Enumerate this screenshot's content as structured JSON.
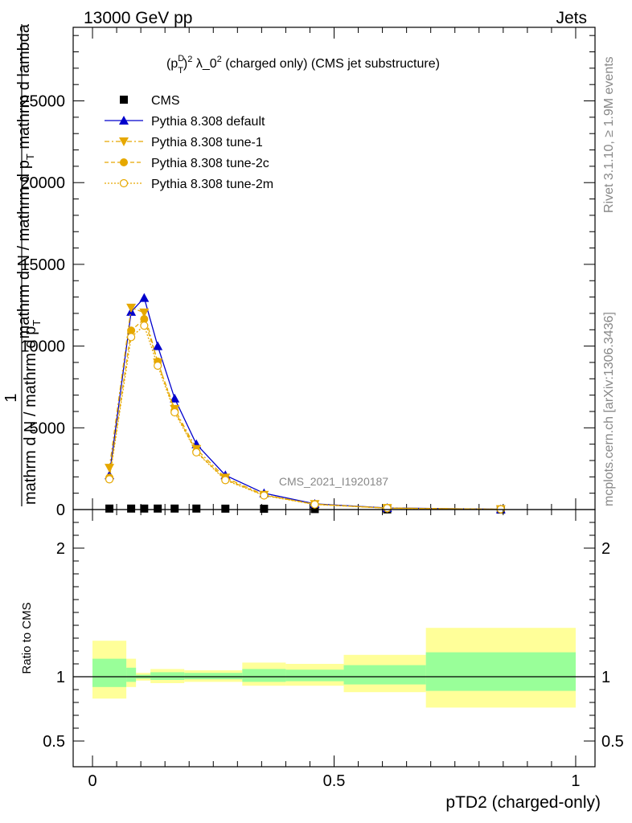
{
  "header": {
    "left": "13000 GeV pp",
    "right": "Jets"
  },
  "side_labels": {
    "rivet": "Rivet 3.1.10, ≥ 1.9M events",
    "mcplots": "mcplots.cern.ch [arXiv:1306.3436]"
  },
  "chart_data": [
    {
      "type": "line",
      "title": "(p_T^D)^2 λ_0^2 (charged only) (CMS jet substructure)",
      "title_parts": {
        "p": "(p",
        "sup_d": "D",
        "sub_t": "T",
        "close": ")",
        "sup_2": "2",
        "lambda": " λ_0",
        "sup_2b": "2",
        "rest": " (charged only) (CMS jet substructure)"
      },
      "watermark": "CMS_2021_I1920187",
      "ylabel_parts": {
        "one": "1",
        "numer_1": "mathrm d",
        "numer_2": "N",
        "numer_3": "mathrm d p",
        "numer_4": "T",
        "numer_5": "mathrm d lambda",
        "denom_1": "mathrm d N / mathrm d p",
        "denom_2": "T"
      },
      "xlim": [
        -0.04,
        1.04
      ],
      "ylim": [
        0,
        29500
      ],
      "yticks": [
        0,
        5000,
        10000,
        15000,
        20000,
        25000
      ],
      "ytick_labels": [
        "0",
        "5000",
        "10000",
        "15000",
        "20000",
        "25000"
      ],
      "legend_position": "top-left",
      "series": [
        {
          "name": "CMS",
          "color": "#000000",
          "marker": "square",
          "x": [
            0.035,
            0.08,
            0.107,
            0.135,
            0.17,
            0.215,
            0.275,
            0.355,
            0.46,
            0.61,
            0.845
          ],
          "y": [
            60,
            60,
            60,
            60,
            60,
            60,
            55,
            50,
            30,
            10,
            2
          ]
        },
        {
          "name": "Pythia 8.308 default",
          "color": "#0000cc",
          "marker": "triangle-up",
          "x": [
            0.035,
            0.08,
            0.107,
            0.135,
            0.17,
            0.215,
            0.275,
            0.355,
            0.46,
            0.61,
            0.845
          ],
          "y": [
            2100,
            12100,
            12950,
            10000,
            6800,
            4000,
            2100,
            1000,
            350,
            100,
            20
          ]
        },
        {
          "name": "Pythia 8.308 tune-1",
          "color": "#e6a800",
          "marker": "triangle-down",
          "x": [
            0.035,
            0.08,
            0.107,
            0.135,
            0.17,
            0.215,
            0.275,
            0.355,
            0.46,
            0.61,
            0.845
          ],
          "y": [
            2550,
            12350,
            12050,
            9000,
            6150,
            3700,
            1950,
            900,
            330,
            90,
            18
          ]
        },
        {
          "name": "Pythia 8.308 tune-2c",
          "color": "#e6a800",
          "marker": "circle",
          "x": [
            0.035,
            0.08,
            0.107,
            0.135,
            0.17,
            0.215,
            0.275,
            0.355,
            0.46,
            0.61,
            0.845
          ],
          "y": [
            1950,
            10950,
            11650,
            9050,
            6050,
            3550,
            1850,
            880,
            320,
            85,
            18
          ]
        },
        {
          "name": "Pythia 8.308 tune-2m",
          "color": "#e6a800",
          "marker": "circle-open",
          "x": [
            0.035,
            0.08,
            0.107,
            0.135,
            0.17,
            0.215,
            0.275,
            0.355,
            0.46,
            0.61,
            0.845
          ],
          "y": [
            1850,
            10550,
            11250,
            8800,
            5950,
            3500,
            1800,
            860,
            310,
            85,
            17
          ]
        }
      ]
    },
    {
      "type": "area",
      "ylabel": "Ratio to CMS",
      "xlabel": "pTD2 (charged-only)",
      "xlim": [
        -0.04,
        1.04
      ],
      "ylim": [
        0.3,
        2.3
      ],
      "xticks": [
        0,
        0.5,
        1
      ],
      "xtick_labels": [
        "0",
        "0.5",
        "1"
      ],
      "yticks": [
        0.5,
        1,
        2
      ],
      "ytick_labels": [
        "0.5",
        "1",
        "2"
      ],
      "reference": 1,
      "bins": [
        {
          "lo": 0.0,
          "hi": 0.07,
          "yellow": [
            0.83,
            1.28
          ],
          "green": [
            0.92,
            1.14
          ]
        },
        {
          "lo": 0.07,
          "hi": 0.09,
          "yellow": [
            0.92,
            1.14
          ],
          "green": [
            0.96,
            1.07
          ]
        },
        {
          "lo": 0.09,
          "hi": 0.12,
          "yellow": [
            0.97,
            1.03
          ],
          "green": [
            0.985,
            1.015
          ]
        },
        {
          "lo": 0.12,
          "hi": 0.19,
          "yellow": [
            0.95,
            1.06
          ],
          "green": [
            0.975,
            1.035
          ]
        },
        {
          "lo": 0.19,
          "hi": 0.31,
          "yellow": [
            0.96,
            1.05
          ],
          "green": [
            0.98,
            1.03
          ]
        },
        {
          "lo": 0.31,
          "hi": 0.4,
          "yellow": [
            0.93,
            1.11
          ],
          "green": [
            0.96,
            1.06
          ]
        },
        {
          "lo": 0.4,
          "hi": 0.52,
          "yellow": [
            0.93,
            1.1
          ],
          "green": [
            0.965,
            1.055
          ]
        },
        {
          "lo": 0.52,
          "hi": 0.69,
          "yellow": [
            0.88,
            1.17
          ],
          "green": [
            0.94,
            1.09
          ]
        },
        {
          "lo": 0.69,
          "hi": 1.0,
          "yellow": [
            0.76,
            1.38
          ],
          "green": [
            0.89,
            1.19
          ]
        }
      ]
    }
  ]
}
